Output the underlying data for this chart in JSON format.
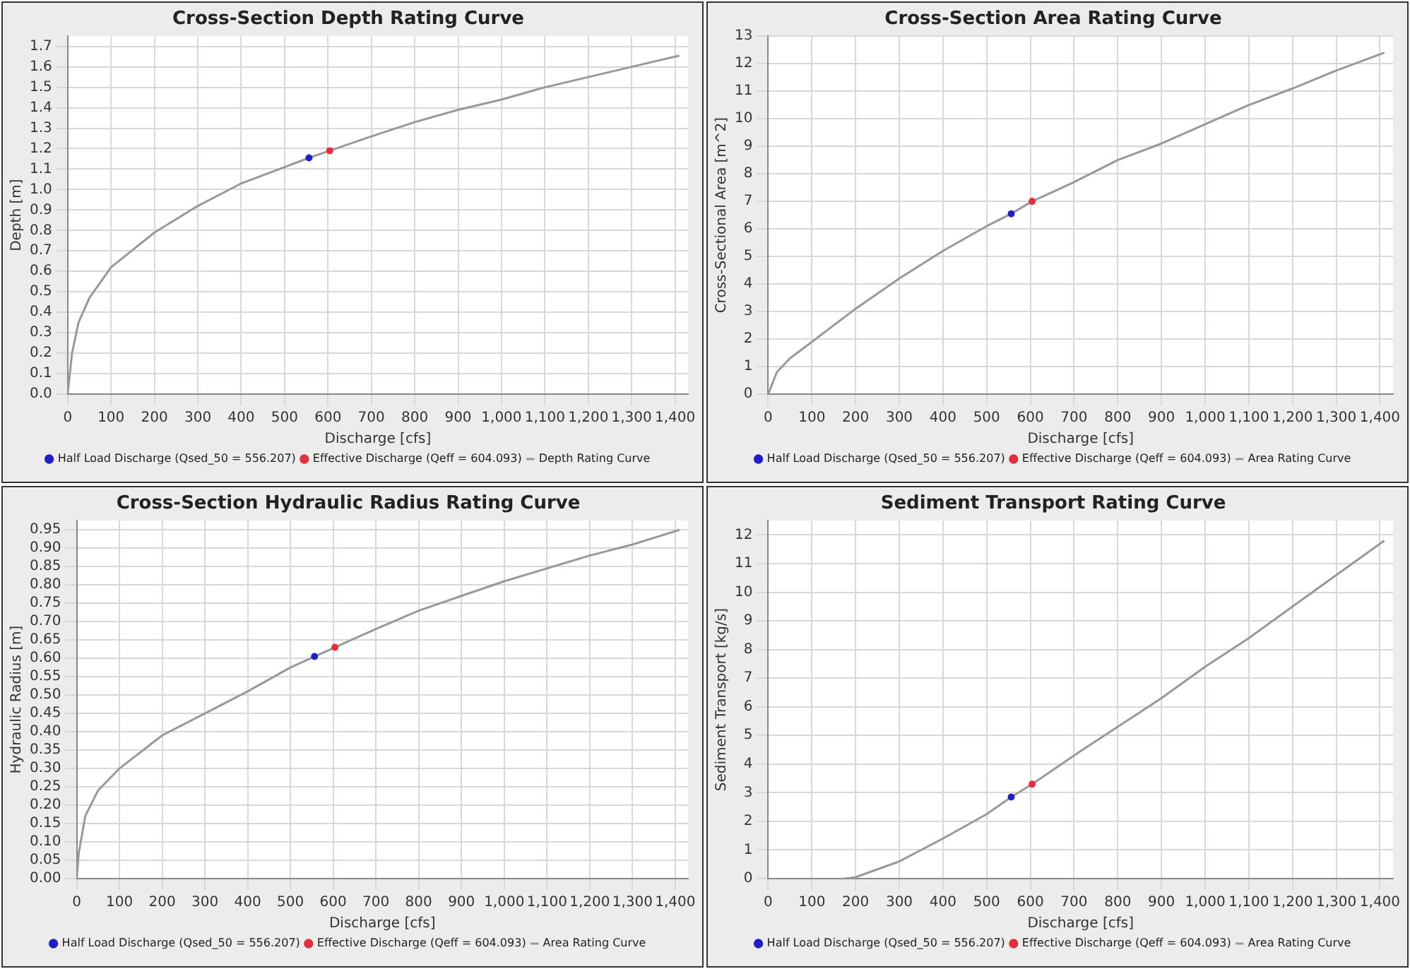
{
  "chart_data": [
    {
      "type": "line",
      "title": "Cross-Section Depth Rating Curve",
      "xlabel": "Discharge [cfs]",
      "ylabel": "Depth [m]",
      "xlim": [
        0,
        1430
      ],
      "ylim": [
        0,
        1.75
      ],
      "xticks": [
        0,
        100,
        200,
        300,
        400,
        500,
        600,
        700,
        800,
        900,
        {
          "value": 1000,
          "label": "1,000"
        },
        {
          "value": 1100,
          "label": "1,100"
        },
        {
          "value": 1200,
          "label": "1,200"
        },
        {
          "value": 1300,
          "label": "1,300"
        },
        {
          "value": 1400,
          "label": "1,400"
        }
      ],
      "yticks": [
        {
          "value": 0,
          "label": "0.0"
        },
        0.1,
        0.2,
        0.3,
        0.4,
        0.5,
        0.6,
        0.7,
        0.8,
        0.9,
        {
          "value": 1,
          "label": "1.0"
        },
        1.1,
        1.2,
        1.3,
        1.4,
        1.5,
        1.6,
        1.7
      ],
      "grid": true,
      "legend": "bottom",
      "series": [
        {
          "name": "Half Load Discharge (Qsed_50 = 556.207)",
          "type": "scatter",
          "marker": "circle",
          "color": "#2020c0",
          "x": [
            556.207
          ],
          "values": [
            1.155
          ]
        },
        {
          "name": "Effective Discharge (Qeff = 604.093)",
          "type": "scatter",
          "marker": "circle",
          "color": "#e03040",
          "x": [
            604.093
          ],
          "values": [
            1.19
          ]
        },
        {
          "name": "Depth Rating Curve",
          "type": "line",
          "marker": "none",
          "color": "#999999",
          "x": [
            0,
            5,
            10,
            25,
            50,
            100,
            200,
            300,
            400,
            500,
            556.207,
            604.093,
            700,
            800,
            900,
            1000,
            1100,
            1200,
            1300,
            1410
          ],
          "values": [
            0,
            0.1,
            0.2,
            0.35,
            0.47,
            0.62,
            0.79,
            0.92,
            1.03,
            1.11,
            1.155,
            1.19,
            1.26,
            1.33,
            1.39,
            1.44,
            1.5,
            1.55,
            1.6,
            1.655
          ]
        }
      ]
    },
    {
      "type": "line",
      "title": "Cross-Section Area Rating Curve",
      "xlabel": "Discharge [cfs]",
      "ylabel": "Cross-Sectional Area [m^2]",
      "xlim": [
        0,
        1430
      ],
      "ylim": [
        0,
        13
      ],
      "xticks": [
        0,
        100,
        200,
        300,
        400,
        500,
        600,
        700,
        800,
        900,
        {
          "value": 1000,
          "label": "1,000"
        },
        {
          "value": 1100,
          "label": "1,100"
        },
        {
          "value": 1200,
          "label": "1,200"
        },
        {
          "value": 1300,
          "label": "1,300"
        },
        {
          "value": 1400,
          "label": "1,400"
        }
      ],
      "yticks": [
        0,
        1,
        2,
        3,
        4,
        5,
        6,
        7,
        8,
        9,
        10,
        11,
        12,
        13
      ],
      "grid": true,
      "legend": "bottom",
      "series": [
        {
          "name": "Half Load Discharge (Qsed_50 = 556.207)",
          "type": "scatter",
          "marker": "circle",
          "color": "#2020c0",
          "x": [
            556.207
          ],
          "values": [
            6.55
          ]
        },
        {
          "name": "Effective Discharge (Qeff = 604.093)",
          "type": "scatter",
          "marker": "circle",
          "color": "#e03040",
          "x": [
            604.093
          ],
          "values": [
            7.0
          ]
        },
        {
          "name": "Area Rating Curve",
          "type": "line",
          "marker": "none",
          "color": "#999999",
          "x": [
            0,
            20,
            50,
            100,
            200,
            300,
            400,
            500,
            556.207,
            604.093,
            700,
            800,
            900,
            1000,
            1100,
            1200,
            1300,
            1410
          ],
          "values": [
            0,
            0.8,
            1.3,
            1.9,
            3.1,
            4.2,
            5.2,
            6.1,
            6.55,
            7.0,
            7.7,
            8.5,
            9.1,
            9.8,
            10.5,
            11.1,
            11.75,
            12.4
          ]
        }
      ]
    },
    {
      "type": "line",
      "title": "Cross-Section Hydraulic Radius Rating Curve",
      "xlabel": "Discharge [cfs]",
      "ylabel": "Hydraulic Radius [m]",
      "xlim": [
        0,
        1430
      ],
      "ylim": [
        0,
        0.975
      ],
      "xticks": [
        0,
        100,
        200,
        300,
        400,
        500,
        600,
        700,
        800,
        900,
        {
          "value": 1000,
          "label": "1,000"
        },
        {
          "value": 1100,
          "label": "1,100"
        },
        {
          "value": 1200,
          "label": "1,200"
        },
        {
          "value": 1300,
          "label": "1,300"
        },
        {
          "value": 1400,
          "label": "1,400"
        }
      ],
      "yticks": [
        {
          "value": 0,
          "label": "0.00"
        },
        0.05,
        {
          "value": 0.1,
          "label": "0.10"
        },
        0.15,
        {
          "value": 0.2,
          "label": "0.20"
        },
        0.25,
        {
          "value": 0.3,
          "label": "0.30"
        },
        0.35,
        {
          "value": 0.4,
          "label": "0.40"
        },
        0.45,
        {
          "value": 0.5,
          "label": "0.50"
        },
        0.55,
        {
          "value": 0.6,
          "label": "0.60"
        },
        0.65,
        {
          "value": 0.7,
          "label": "0.70"
        },
        0.75,
        {
          "value": 0.8,
          "label": "0.80"
        },
        0.85,
        {
          "value": 0.9,
          "label": "0.90"
        },
        0.95
      ],
      "grid": true,
      "legend": "bottom",
      "series": [
        {
          "name": "Half Load Discharge (Qsed_50 = 556.207)",
          "type": "scatter",
          "marker": "circle",
          "color": "#2020c0",
          "x": [
            556.207
          ],
          "values": [
            0.605
          ]
        },
        {
          "name": "Effective Discharge (Qeff = 604.093)",
          "type": "scatter",
          "marker": "circle",
          "color": "#e03040",
          "x": [
            604.093
          ],
          "values": [
            0.63
          ]
        },
        {
          "name": "Area Rating Curve",
          "type": "line",
          "marker": "none",
          "color": "#999999",
          "x": [
            0,
            5,
            20,
            50,
            100,
            200,
            300,
            400,
            500,
            556.207,
            604.093,
            700,
            800,
            900,
            1000,
            1100,
            1200,
            1300,
            1410
          ],
          "values": [
            0,
            0.07,
            0.17,
            0.24,
            0.3,
            0.39,
            0.45,
            0.51,
            0.575,
            0.605,
            0.63,
            0.68,
            0.73,
            0.77,
            0.81,
            0.845,
            0.88,
            0.91,
            0.95
          ]
        }
      ]
    },
    {
      "type": "line",
      "title": "Sediment Transport Rating Curve",
      "xlabel": "Discharge [cfs]",
      "ylabel": "Sediment Transport [kg/s]",
      "xlim": [
        0,
        1430
      ],
      "ylim": [
        0,
        12.5
      ],
      "xticks": [
        0,
        100,
        200,
        300,
        400,
        500,
        600,
        700,
        800,
        900,
        {
          "value": 1000,
          "label": "1,000"
        },
        {
          "value": 1100,
          "label": "1,100"
        },
        {
          "value": 1200,
          "label": "1,200"
        },
        {
          "value": 1300,
          "label": "1,300"
        },
        {
          "value": 1400,
          "label": "1,400"
        }
      ],
      "yticks": [
        0,
        1,
        2,
        3,
        4,
        5,
        6,
        7,
        8,
        9,
        10,
        11,
        12
      ],
      "grid": true,
      "legend": "bottom",
      "series": [
        {
          "name": "Half Load Discharge (Qsed_50 = 556.207)",
          "type": "scatter",
          "marker": "circle",
          "color": "#2020c0",
          "x": [
            556.207
          ],
          "values": [
            2.85
          ]
        },
        {
          "name": "Effective Discharge (Qeff = 604.093)",
          "type": "scatter",
          "marker": "circle",
          "color": "#e03040",
          "x": [
            604.093
          ],
          "values": [
            3.3
          ]
        },
        {
          "name": "Area Rating Curve",
          "type": "line",
          "marker": "none",
          "color": "#999999",
          "x": [
            175,
            200,
            300,
            400,
            500,
            556.207,
            604.093,
            700,
            800,
            900,
            1000,
            1100,
            1200,
            1300,
            1410
          ],
          "values": [
            0,
            0.05,
            0.6,
            1.4,
            2.25,
            2.85,
            3.3,
            4.3,
            5.3,
            6.3,
            7.4,
            8.4,
            9.5,
            10.6,
            11.8
          ]
        }
      ]
    }
  ]
}
